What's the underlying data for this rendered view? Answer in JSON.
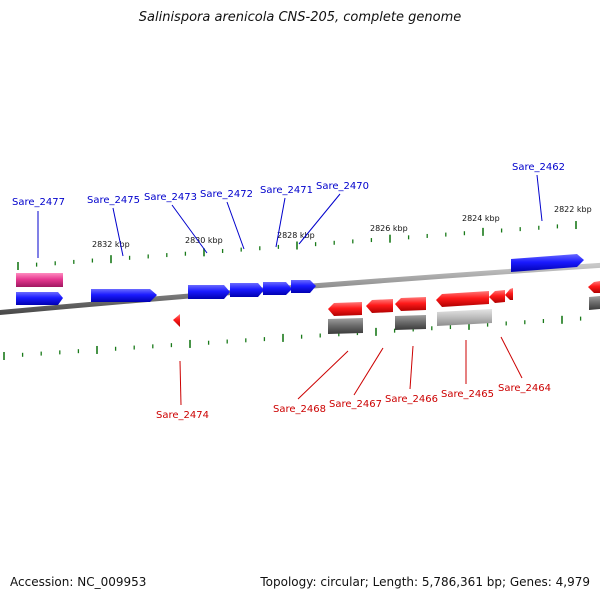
{
  "header": {
    "title": "Salinispora arenicola CNS-205, complete genome"
  },
  "footer": {
    "accession": "Accession: NC_009953",
    "info": "Topology: circular; Length: 5,786,361 bp; Genes: 4,979"
  },
  "colors": {
    "forward_gene": "#0000ff",
    "reverse_gene": "#ff0000",
    "backbone": "#8a8a8a",
    "tick": "#1a7a1a",
    "rna": "#e0338a",
    "gray_feature": "#666666",
    "light_gray_feature": "#bbbbbb"
  },
  "scale": {
    "labels": [
      "2832 kbp",
      "2830 kbp",
      "2828 kbp",
      "2826 kbp",
      "2824 kbp",
      "2822 kbp"
    ]
  },
  "forward_labels": [
    "Sare_2477",
    "Sare_2475",
    "Sare_2473",
    "Sare_2472",
    "Sare_2471",
    "Sare_2470",
    "Sare_2462"
  ],
  "reverse_labels": [
    "Sare_2474",
    "Sare_2468",
    "Sare_2467",
    "Sare_2466",
    "Sare_2465",
    "Sare_2464"
  ]
}
